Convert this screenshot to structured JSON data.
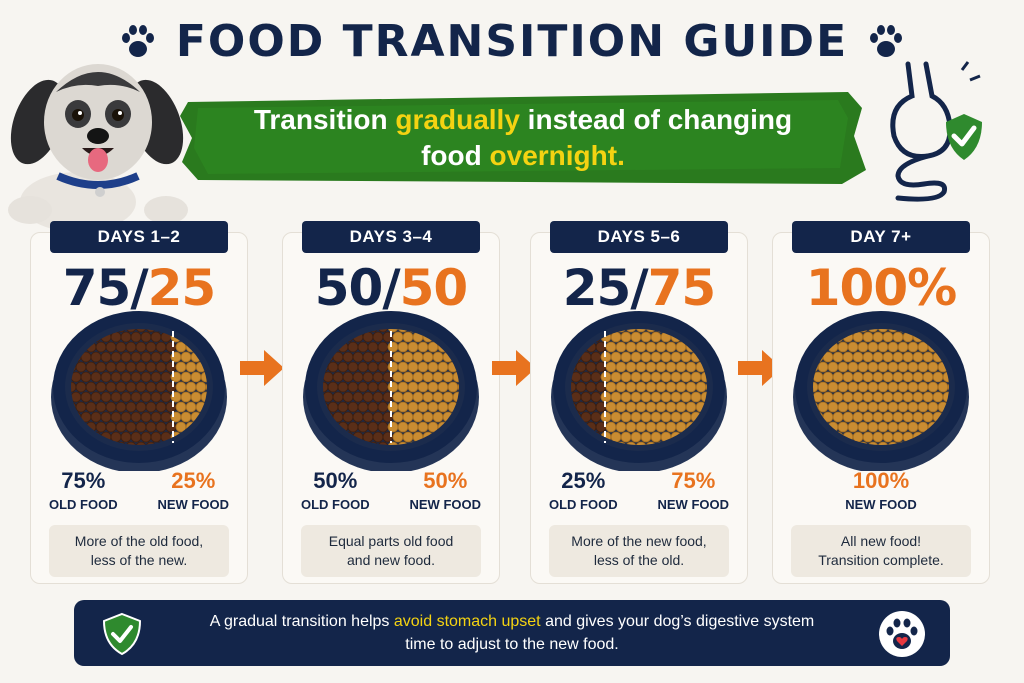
{
  "header": {
    "title": "FOOD TRANSITION GUIDE",
    "banner_line1_pre": "Transition ",
    "banner_line1_hl": "gradually",
    "banner_line1_post": " instead of changing",
    "banner_line2_pre": "food ",
    "banner_line2_hl": "overnight."
  },
  "stages": [
    {
      "label": "DAYS 1–2",
      "ratio_old": "75",
      "sep": "/",
      "ratio_new": "25",
      "old_pct": "75%",
      "old_label": "OLD FOOD",
      "new_pct": "25%",
      "new_label": "NEW FOOD",
      "old_share": 0.75,
      "note_line1": "More of the old food,",
      "note_line2": "less of the new."
    },
    {
      "label": "DAYS 3–4",
      "ratio_old": "50",
      "sep": "/",
      "ratio_new": "50",
      "old_pct": "50%",
      "old_label": "OLD FOOD",
      "new_pct": "50%",
      "new_label": "NEW FOOD",
      "old_share": 0.5,
      "note_line1": "Equal parts old food",
      "note_line2": "and new food."
    },
    {
      "label": "DAYS 5–6",
      "ratio_old": "25",
      "sep": "/",
      "ratio_new": "75",
      "old_pct": "25%",
      "old_label": "OLD FOOD",
      "new_pct": "75%",
      "new_label": "NEW FOOD",
      "old_share": 0.25,
      "note_line1": "More of the new food,",
      "note_line2": "less of the old."
    },
    {
      "label": "DAY 7+",
      "ratio_new": "100%",
      "new_pct": "100%",
      "new_label": "NEW FOOD",
      "old_share": 0,
      "note_line1": "All new food!",
      "note_line2": "Transition complete."
    }
  ],
  "footer": {
    "line1_pre": "A gradual transition helps ",
    "line1_hl": "avoid stomach upset",
    "line1_post": " and gives your dog’s digestive system",
    "line2": "time to adjust to the new food."
  },
  "colors": {
    "navy": "#13254a",
    "orange": "#e8731f",
    "banner_green": "#2a7a1e",
    "highlight_yellow": "#f4d312",
    "old_kibble": "#5a2e18",
    "new_kibble": "#c98c32"
  },
  "icons": [
    "paw-icon",
    "stomach-icon",
    "shield-check-icon",
    "arrow-right-icon",
    "paw-heart-icon"
  ]
}
